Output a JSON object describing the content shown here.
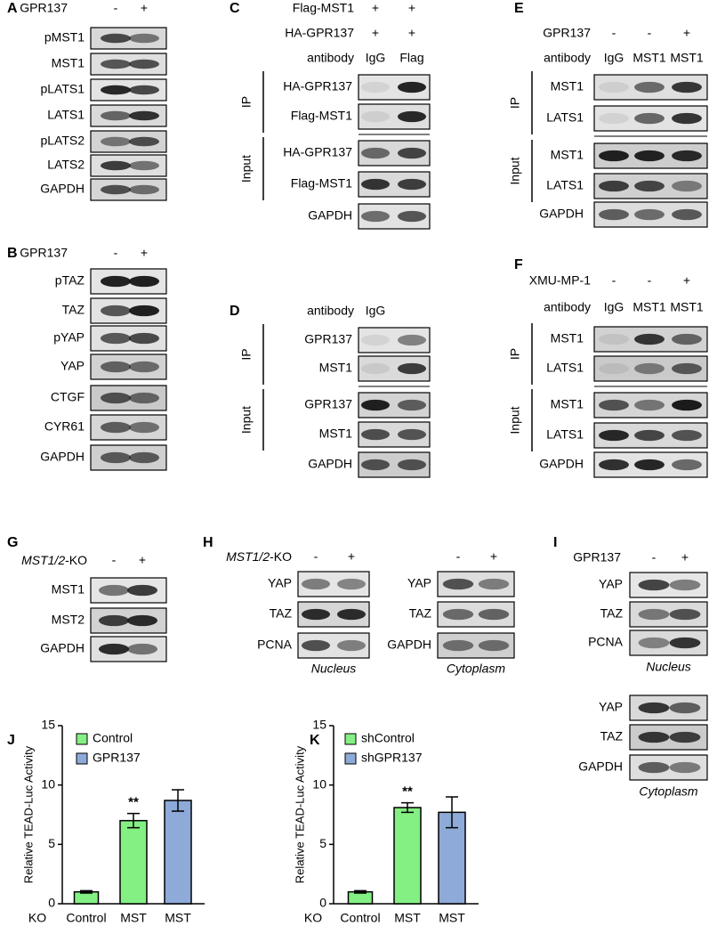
{
  "panels": [
    {
      "letter": "A",
      "parts": [
        {
          "header": [
            {
              "name": "GPR137",
              "lanes": [
                "-",
                "+"
              ]
            }
          ],
          "blocks": [
            {
              "rows": [
                "pMST1",
                "MST1",
                "pLATS1",
                "LATS1",
                "pLATS2",
                "LATS2",
                "GAPDH"
              ]
            }
          ]
        }
      ]
    },
    {
      "letter": "B",
      "parts": [
        {
          "header": [
            {
              "name": "GPR137",
              "lanes": [
                "-",
                "+"
              ]
            }
          ],
          "blocks": [
            {
              "rows": [
                "pTAZ",
                "TAZ",
                "pYAP",
                "YAP",
                "CTGF",
                "CYR61",
                "GAPDH"
              ]
            }
          ]
        }
      ]
    },
    {
      "letter": "C",
      "parts": [
        {
          "header": [
            {
              "name": "Flag-MST1",
              "lanes": [
                "+",
                "+"
              ]
            },
            {
              "name": "HA-GPR137",
              "lanes": [
                "+",
                "+"
              ]
            },
            {
              "name": "antibody",
              "lanes": [
                "IgG",
                "Flag"
              ]
            }
          ],
          "blocks": [
            {
              "group": "IP",
              "rows": [
                "HA-GPR137",
                "Flag-MST1"
              ]
            },
            {
              "group": "Input",
              "rows": [
                "HA-GPR137",
                "Flag-MST1"
              ]
            },
            {
              "rows": [
                "GAPDH"
              ]
            }
          ]
        }
      ]
    },
    {
      "letter": "D",
      "parts": [
        {
          "header": [
            {
              "name": "antibody",
              "lanes": [
                "IgG"
              ]
            }
          ],
          "blocks": [
            {
              "group": "IP",
              "rows": [
                "GPR137",
                "MST1"
              ]
            },
            {
              "group": "Input",
              "rows": [
                "GPR137",
                "MST1"
              ]
            },
            {
              "rows": [
                "GAPDH"
              ]
            }
          ]
        }
      ]
    },
    {
      "letter": "E",
      "parts": [
        {
          "header": [
            {
              "name": "GPR137",
              "lanes": [
                "-",
                "-",
                "+"
              ]
            },
            {
              "name": "antibody",
              "lanes": [
                "IgG",
                "MST1",
                "MST1"
              ]
            }
          ],
          "blocks": [
            {
              "group": "IP",
              "rows": [
                "MST1",
                "LATS1"
              ]
            },
            {
              "group": "Input",
              "rows": [
                "MST1",
                "LATS1"
              ]
            },
            {
              "rows": [
                "GAPDH"
              ]
            }
          ]
        }
      ]
    },
    {
      "letter": "F",
      "parts": [
        {
          "header": [
            {
              "name": "XMU-MP-1",
              "lanes": [
                "-",
                "-",
                "+"
              ]
            },
            {
              "name": "antibody",
              "lanes": [
                "IgG",
                "MST1",
                "MST1"
              ]
            }
          ],
          "blocks": [
            {
              "group": "IP",
              "rows": [
                "MST1",
                "LATS1"
              ]
            },
            {
              "group": "Input",
              "rows": [
                "MST1",
                "LATS1"
              ]
            },
            {
              "rows": [
                "GAPDH"
              ]
            }
          ]
        }
      ]
    },
    {
      "letter": "G",
      "parts": [
        {
          "header": [
            {
              "name_italic": "MST1/2",
              "name": "-KO",
              "lanes": [
                "-",
                "+"
              ]
            }
          ],
          "blocks": [
            {
              "rows": [
                "MST1",
                "MST2",
                "GAPDH"
              ]
            }
          ]
        }
      ]
    },
    {
      "letter": "H",
      "parts": [
        {
          "header": [
            {
              "name_italic": "MST1/2",
              "name": "-KO",
              "lanes": [
                "-",
                "+"
              ]
            }
          ],
          "blocks": [
            {
              "rows": [
                "YAP",
                "TAZ",
                "PCNA"
              ]
            }
          ],
          "caption": "Nucleus"
        },
        {
          "header": [
            {
              "lanes": [
                "-",
                "+"
              ]
            }
          ],
          "blocks": [
            {
              "rows": [
                "YAP",
                "TAZ",
                "GAPDH"
              ]
            }
          ],
          "caption": "Cytoplasm"
        }
      ]
    },
    {
      "letter": "I",
      "parts": [
        {
          "header": [
            {
              "name": "GPR137",
              "lanes": [
                "-",
                "+"
              ]
            }
          ],
          "blocks": [
            {
              "rows": [
                "YAP",
                "TAZ",
                "PCNA"
              ]
            }
          ],
          "caption": "Nucleus"
        },
        {
          "blocks": [
            {
              "rows": [
                "YAP",
                "TAZ",
                "GAPDH"
              ]
            }
          ],
          "caption": "Cytoplasm"
        }
      ]
    }
  ],
  "chart_data": [
    {
      "type": "bar",
      "letter": "J",
      "y_label": "Relative TEAD-Luc Activity",
      "x_label": "KO",
      "categories": [
        "Control",
        "MST",
        "MST"
      ],
      "series": [
        {
          "name": "Control",
          "color": "#84f084",
          "values": [
            1.0,
            7.0,
            null
          ],
          "errors": [
            0.1,
            0.6,
            null
          ]
        },
        {
          "name": "GPR137",
          "color": "#8eaad8",
          "values": [
            null,
            null,
            8.7
          ],
          "errors": [
            null,
            null,
            0.9
          ]
        }
      ],
      "significance": [
        null,
        "**",
        null
      ],
      "ylim": [
        0,
        15
      ],
      "yticks": [
        0,
        5,
        10,
        15
      ]
    },
    {
      "type": "bar",
      "letter": "K",
      "y_label": "Relative TEAD-Luc Activity",
      "x_label": "KO",
      "categories": [
        "Control",
        "MST",
        "MST"
      ],
      "series": [
        {
          "name": "shControl",
          "color": "#84f084",
          "values": [
            1.0,
            8.1,
            null
          ],
          "errors": [
            0.1,
            0.4,
            null
          ]
        },
        {
          "name": "shGPR137",
          "color": "#8eaad8",
          "values": [
            null,
            null,
            7.7
          ],
          "errors": [
            null,
            null,
            1.3
          ]
        }
      ],
      "significance": [
        null,
        "**",
        null
      ],
      "ylim": [
        0,
        15
      ],
      "yticks": [
        0,
        5,
        10,
        15
      ]
    }
  ]
}
